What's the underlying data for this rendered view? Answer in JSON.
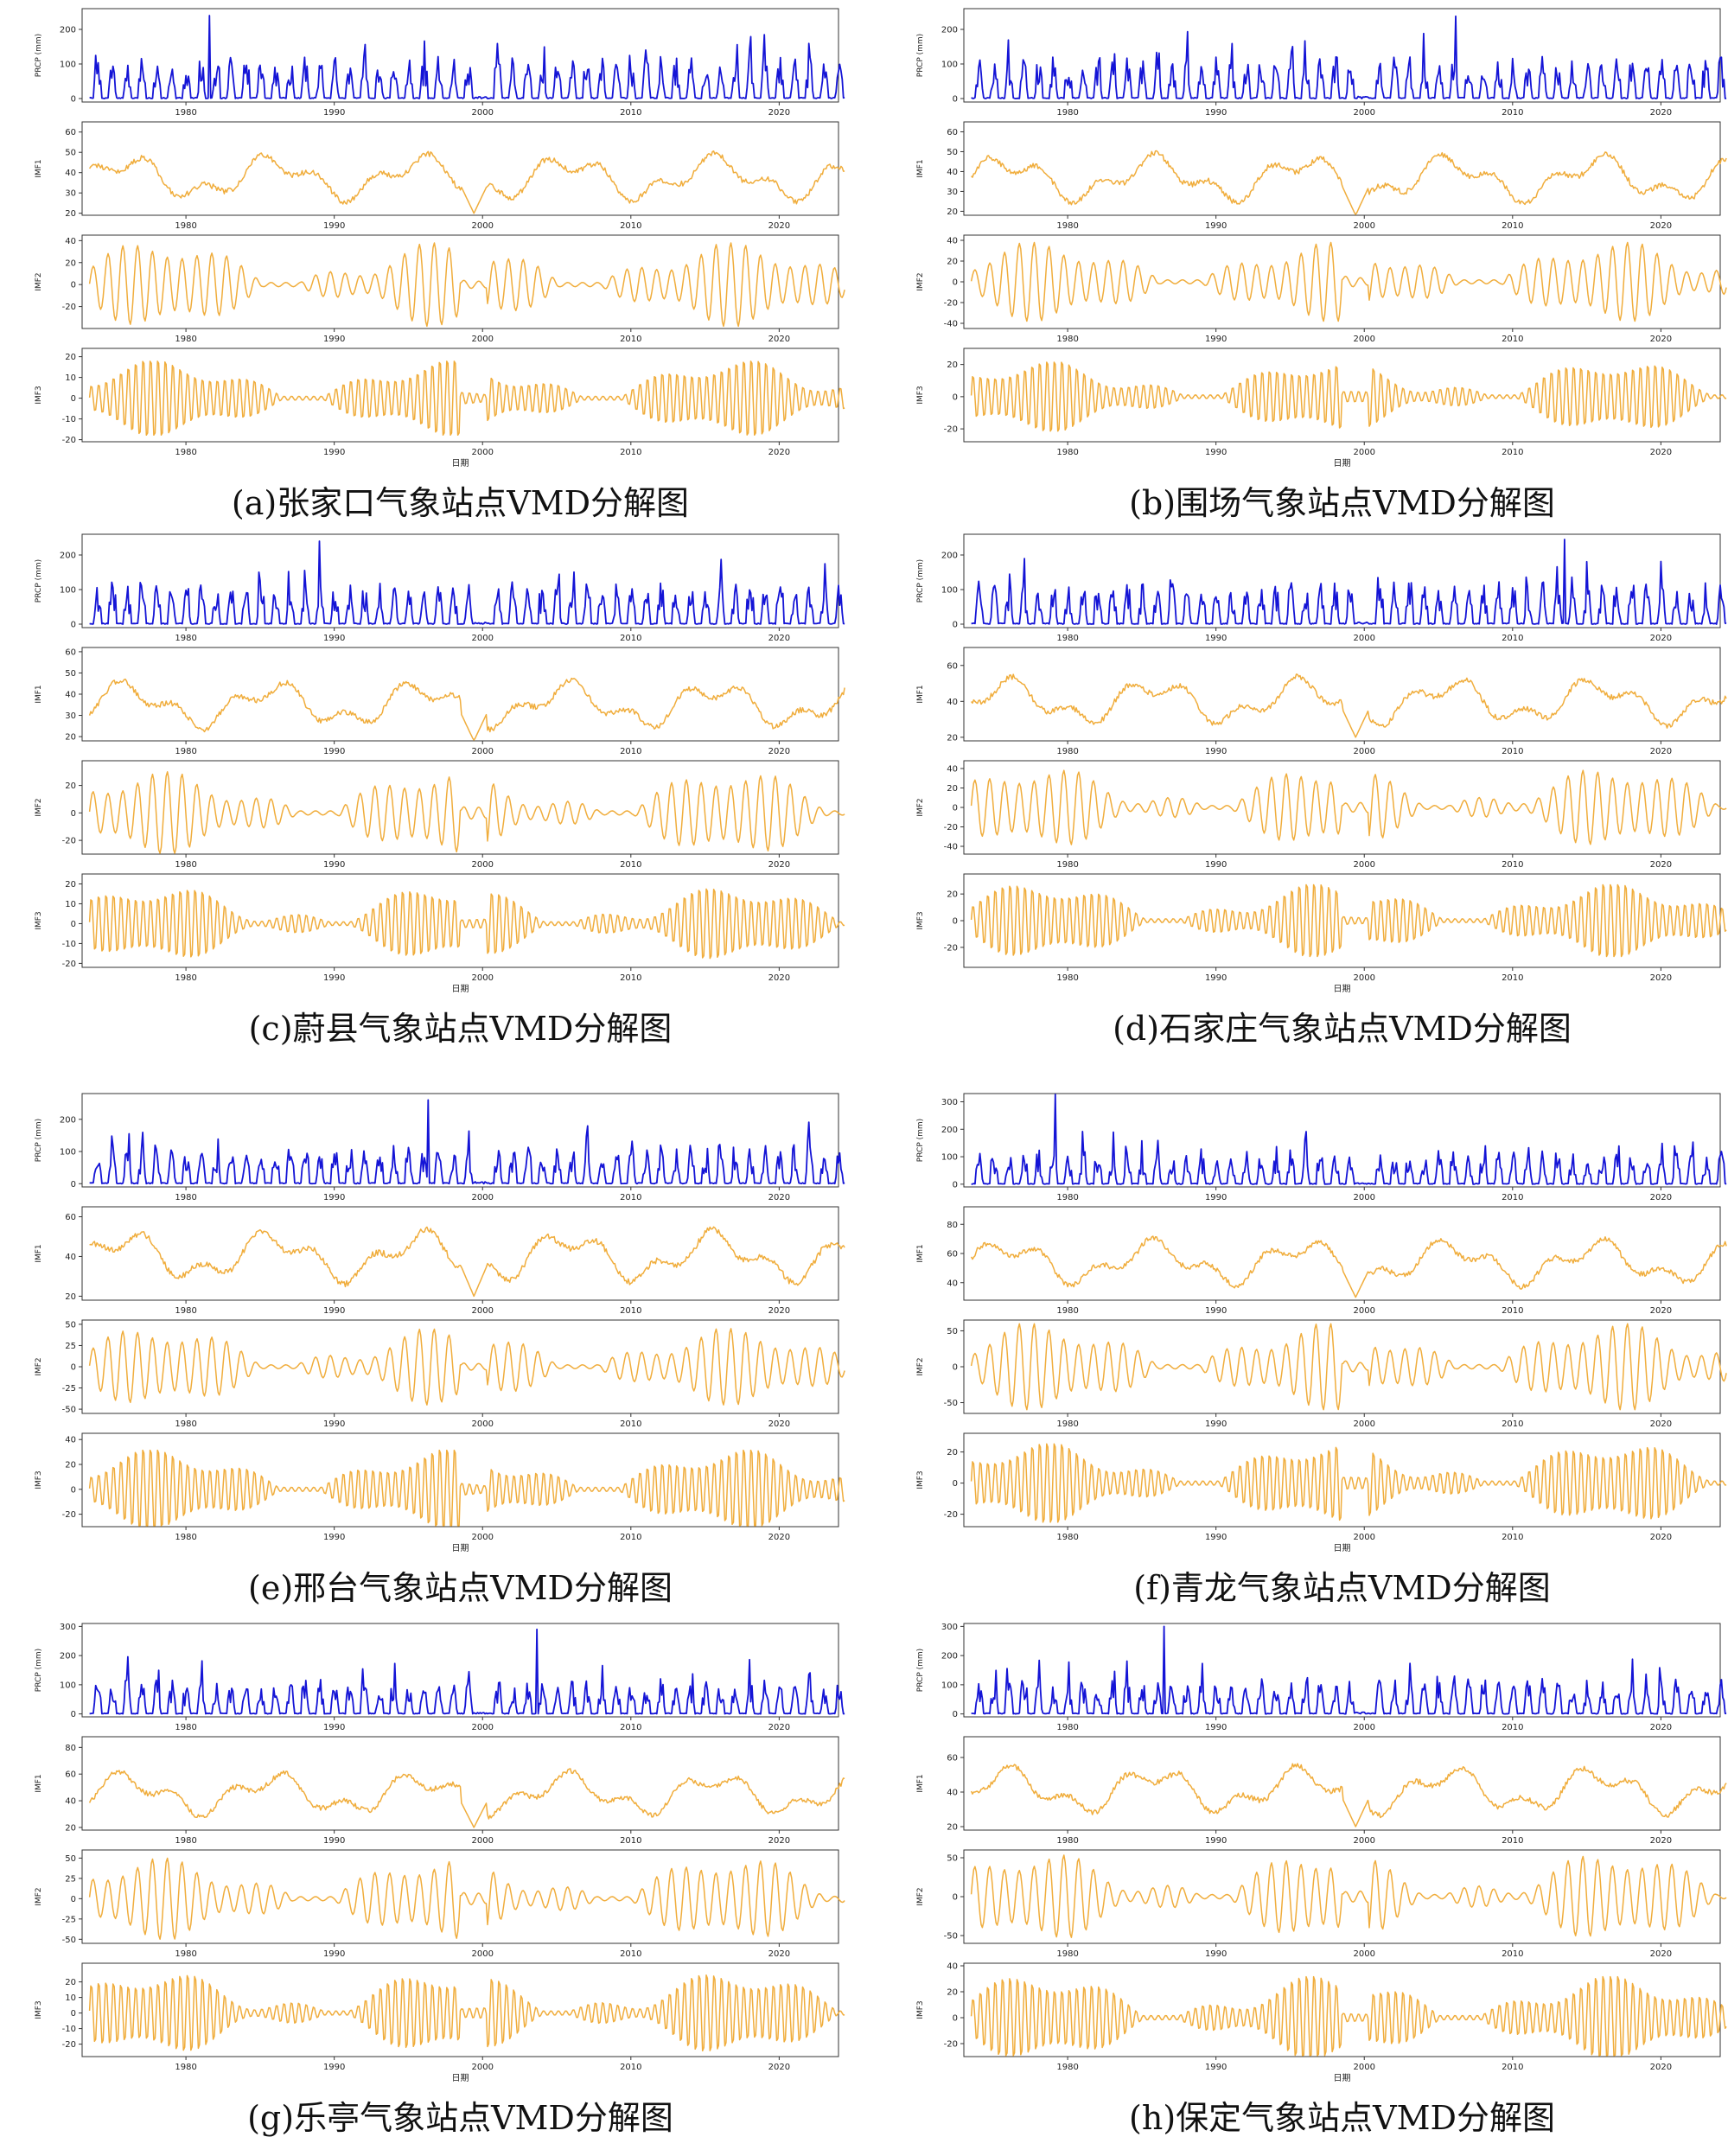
{
  "figure": {
    "colors": {
      "prcp": "#1414d6",
      "imf": "#f0ad3c",
      "axes": "#333333",
      "background": "#ffffff"
    }
  },
  "chart_data": [
    {
      "type": "line",
      "caption": "(a)张家口气象站点VMD分解图",
      "xlabel": "日期",
      "xlim": [
        1973,
        2024
      ],
      "xticks": [
        1980,
        1990,
        2000,
        2010,
        2020
      ],
      "series": [
        {
          "ylabel": "PRCP (mm)",
          "ylim": [
            -10,
            260
          ],
          "yticks": [
            0,
            100,
            200
          ],
          "peak": 240
        },
        {
          "ylabel": "IMF1",
          "ylim": [
            19,
            65
          ],
          "yticks": [
            20,
            30,
            40,
            50,
            60
          ],
          "min": 20,
          "max": 55
        },
        {
          "ylabel": "IMF2",
          "ylim": [
            -40,
            45
          ],
          "yticks": [
            -20,
            0,
            20,
            40
          ],
          "amplitude": 38
        },
        {
          "ylabel": "IMF3",
          "ylim": [
            -21,
            24
          ],
          "yticks": [
            -20,
            -10,
            0,
            10,
            20
          ],
          "amplitude": 20
        }
      ]
    },
    {
      "type": "line",
      "caption": "(b)围场气象站点VMD分解图",
      "xlabel": "日期",
      "xlim": [
        1973,
        2024
      ],
      "xticks": [
        1980,
        1990,
        2000,
        2010,
        2020
      ],
      "series": [
        {
          "ylabel": "PRCP (mm)",
          "ylim": [
            -10,
            260
          ],
          "yticks": [
            0,
            100,
            200
          ],
          "peak": 238
        },
        {
          "ylabel": "IMF1",
          "ylim": [
            18,
            65
          ],
          "yticks": [
            20,
            30,
            40,
            50,
            60
          ],
          "min": 18,
          "max": 55
        },
        {
          "ylabel": "IMF2",
          "ylim": [
            -45,
            45
          ],
          "yticks": [
            -40,
            -20,
            0,
            20,
            40
          ],
          "amplitude": 38
        },
        {
          "ylabel": "IMF3",
          "ylim": [
            -28,
            30
          ],
          "yticks": [
            -20,
            0,
            20
          ],
          "amplitude": 24
        }
      ]
    },
    {
      "type": "line",
      "caption": "(c)蔚县气象站点VMD分解图",
      "xlabel": "日期",
      "xlim": [
        1973,
        2024
      ],
      "xticks": [
        1980,
        1990,
        2000,
        2010,
        2020
      ],
      "series": [
        {
          "ylabel": "PRCP (mm)",
          "ylim": [
            -10,
            260
          ],
          "yticks": [
            0,
            100,
            200
          ],
          "peak": 240
        },
        {
          "ylabel": "IMF1",
          "ylim": [
            18,
            62
          ],
          "yticks": [
            20,
            30,
            40,
            50,
            60
          ],
          "min": 18,
          "max": 52
        },
        {
          "ylabel": "IMF2",
          "ylim": [
            -30,
            38
          ],
          "yticks": [
            -20,
            0,
            20
          ],
          "amplitude": 30
        },
        {
          "ylabel": "IMF3",
          "ylim": [
            -22,
            25
          ],
          "yticks": [
            -20,
            -10,
            0,
            10,
            20
          ],
          "amplitude": 20
        }
      ]
    },
    {
      "type": "line",
      "caption": "(d)石家庄气象站点VMD分解图",
      "xlabel": "日期",
      "xlim": [
        1973,
        2024
      ],
      "xticks": [
        1980,
        1990,
        2000,
        2010,
        2020
      ],
      "series": [
        {
          "ylabel": "PRCP (mm)",
          "ylim": [
            -10,
            260
          ],
          "yticks": [
            0,
            100,
            200
          ],
          "peak": 245
        },
        {
          "ylabel": "IMF1",
          "ylim": [
            18,
            70
          ],
          "yticks": [
            20,
            40,
            60
          ],
          "min": 20,
          "max": 60
        },
        {
          "ylabel": "IMF2",
          "ylim": [
            -48,
            48
          ],
          "yticks": [
            -40,
            -20,
            0,
            20,
            40
          ],
          "amplitude": 40
        },
        {
          "ylabel": "IMF3",
          "ylim": [
            -35,
            35
          ],
          "yticks": [
            -20,
            0,
            20
          ],
          "amplitude": 30
        }
      ]
    },
    {
      "type": "line",
      "caption": "(e)邢台气象站点VMD分解图",
      "xlabel": "日期",
      "xlim": [
        1973,
        2024
      ],
      "xticks": [
        1980,
        1990,
        2000,
        2010,
        2020
      ],
      "series": [
        {
          "ylabel": "PRCP (mm)",
          "ylim": [
            -10,
            280
          ],
          "yticks": [
            0,
            100,
            200
          ],
          "peak": 260
        },
        {
          "ylabel": "IMF1",
          "ylim": [
            18,
            65
          ],
          "yticks": [
            20,
            40,
            60
          ],
          "min": 20,
          "max": 60
        },
        {
          "ylabel": "IMF2",
          "ylim": [
            -55,
            55
          ],
          "yticks": [
            -50,
            -25,
            0,
            25,
            50
          ],
          "amplitude": 45
        },
        {
          "ylabel": "IMF3",
          "ylim": [
            -30,
            45
          ],
          "yticks": [
            -20,
            0,
            20,
            40
          ],
          "amplitude": 35
        }
      ]
    },
    {
      "type": "line",
      "caption": "(f)青龙气象站点VMD分解图",
      "xlabel": "日期",
      "xlim": [
        1973,
        2024
      ],
      "xticks": [
        1980,
        1990,
        2000,
        2010,
        2020
      ],
      "series": [
        {
          "ylabel": "PRCP (mm)",
          "ylim": [
            -10,
            330
          ],
          "yticks": [
            0,
            100,
            200,
            300
          ],
          "peak": 330
        },
        {
          "ylabel": "IMF1",
          "ylim": [
            28,
            92
          ],
          "yticks": [
            40,
            60,
            80
          ],
          "min": 30,
          "max": 78
        },
        {
          "ylabel": "IMF2",
          "ylim": [
            -65,
            65
          ],
          "yticks": [
            -50,
            0,
            50
          ],
          "amplitude": 60
        },
        {
          "ylabel": "IMF3",
          "ylim": [
            -28,
            32
          ],
          "yticks": [
            -20,
            0,
            20
          ],
          "amplitude": 28
        }
      ]
    },
    {
      "type": "line",
      "caption": "(g)乐亭气象站点VMD分解图",
      "xlabel": "日期",
      "xlim": [
        1973,
        2024
      ],
      "xticks": [
        1980,
        1990,
        2000,
        2010,
        2020
      ],
      "series": [
        {
          "ylabel": "PRCP (mm)",
          "ylim": [
            -10,
            310
          ],
          "yticks": [
            0,
            100,
            200,
            300
          ],
          "peak": 290
        },
        {
          "ylabel": "IMF1",
          "ylim": [
            18,
            88
          ],
          "yticks": [
            20,
            40,
            60,
            80
          ],
          "min": 20,
          "max": 70
        },
        {
          "ylabel": "IMF2",
          "ylim": [
            -55,
            60
          ],
          "yticks": [
            -50,
            -25,
            0,
            25,
            50
          ],
          "amplitude": 50
        },
        {
          "ylabel": "IMF3",
          "ylim": [
            -28,
            32
          ],
          "yticks": [
            -20,
            -10,
            0,
            10,
            20
          ],
          "amplitude": 28
        }
      ]
    },
    {
      "type": "line",
      "caption": "(h)保定气象站点VMD分解图",
      "xlabel": "日期",
      "xlim": [
        1973,
        2024
      ],
      "xticks": [
        1980,
        1990,
        2000,
        2010,
        2020
      ],
      "series": [
        {
          "ylabel": "PRCP (mm)",
          "ylim": [
            -10,
            310
          ],
          "yticks": [
            0,
            100,
            200,
            300
          ],
          "peak": 300
        },
        {
          "ylabel": "IMF1",
          "ylim": [
            18,
            72
          ],
          "yticks": [
            20,
            40,
            60
          ],
          "min": 20,
          "max": 62
        },
        {
          "ylabel": "IMF2",
          "ylim": [
            -60,
            60
          ],
          "yticks": [
            -50,
            0,
            50
          ],
          "amplitude": 55
        },
        {
          "ylabel": "IMF3",
          "ylim": [
            -30,
            42
          ],
          "yticks": [
            -20,
            0,
            20,
            40
          ],
          "amplitude": 35
        }
      ]
    }
  ]
}
